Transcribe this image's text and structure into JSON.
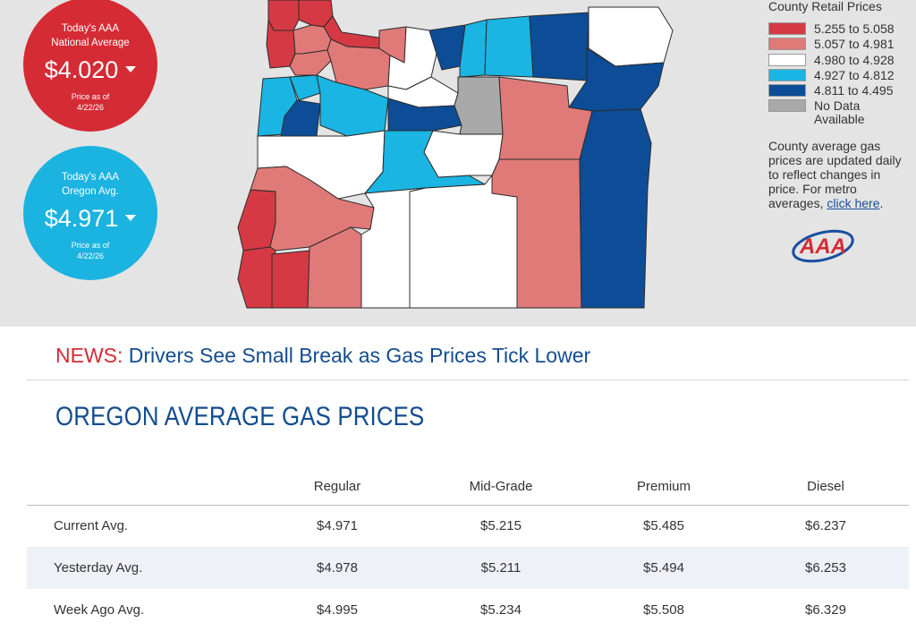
{
  "national_badge": {
    "line1": "Today's AAA",
    "line2": "National Average",
    "price": "$4.020",
    "asof_label": "Price as of",
    "asof_date": "4/22/26",
    "color": "#d52b35"
  },
  "oregon_badge": {
    "line1": "Today's AAA",
    "line2": "Oregon Avg.",
    "price": "$4.971",
    "asof_label": "Price as of",
    "asof_date": "4/22/26",
    "color": "#1bb3e0"
  },
  "legend": {
    "title": "County Retail Prices",
    "items": [
      {
        "label": "5.255 to 5.058",
        "color": "#d53a44"
      },
      {
        "label": "5.057 to 4.981",
        "color": "#e07a78"
      },
      {
        "label": "4.980 to 4.928",
        "color": "#ffffff"
      },
      {
        "label": "4.927 to 4.812",
        "color": "#1ab5e2"
      },
      {
        "label": "4.811 to 4.495",
        "color": "#0d4d97"
      },
      {
        "label": "No Data",
        "label2": "Available",
        "color": "#a9a9a9"
      }
    ],
    "note": "County average gas prices are updated daily to reflect changes in price. For metro averages,",
    "link_text": "click here",
    "note_end": "."
  },
  "logo_text": "AAA",
  "news": {
    "label": "NEWS:",
    "headline": "Drivers See Small Break as Gas Prices Tick Lower"
  },
  "section_title": "OREGON AVERAGE GAS PRICES",
  "table": {
    "columns": [
      "Regular",
      "Mid-Grade",
      "Premium",
      "Diesel"
    ],
    "rows": [
      {
        "label": "Current Avg.",
        "values": [
          "$4.971",
          "$5.215",
          "$5.485",
          "$6.237"
        ]
      },
      {
        "label": "Yesterday Avg.",
        "values": [
          "$4.978",
          "$5.211",
          "$5.494",
          "$6.253"
        ]
      },
      {
        "label": "Week Ago Avg.",
        "values": [
          "$4.995",
          "$5.234",
          "$5.508",
          "$6.329"
        ]
      }
    ]
  }
}
